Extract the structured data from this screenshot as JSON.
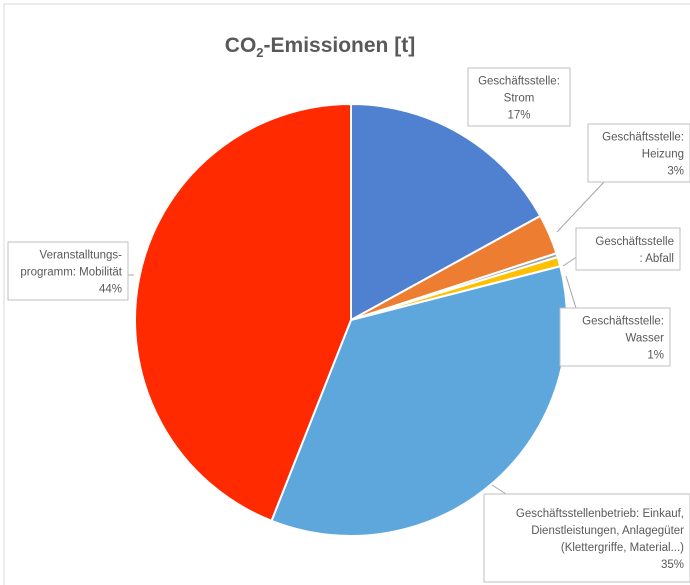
{
  "chart_data": {
    "type": "pie",
    "title": {
      "prefix": "CO",
      "subscript": "2",
      "suffix": "-Emissionen [t]"
    },
    "slices": [
      {
        "lines": [
          "Geschäftsstelle:",
          "Strom",
          "17%"
        ],
        "value": 17,
        "color": "#4f81d0"
      },
      {
        "lines": [
          "Geschäftsstelle:",
          "Heizung",
          "3%"
        ],
        "value": 3,
        "color": "#ed7d31"
      },
      {
        "lines": [
          "Geschäftsstelle",
          ": Abfall"
        ],
        "value": 0.3,
        "color": "#a5a5a5"
      },
      {
        "lines": [
          "Geschäftsstelle:",
          "Wasser",
          "1%"
        ],
        "value": 0.7,
        "color": "#ffc000"
      },
      {
        "lines": [
          "Geschäftsstellenbetrieb: Einkauf,",
          "Dienstleistungen, Anlagegüter",
          "(Klettergriffe, Material...)",
          "35%"
        ],
        "value": 35,
        "color": "#5ea7dc"
      },
      {
        "lines": [
          "Veranstalltungs-",
          "programm: Mobilität",
          "44%"
        ],
        "value": 44,
        "color": "#ff2a00"
      }
    ],
    "legend": "none"
  }
}
